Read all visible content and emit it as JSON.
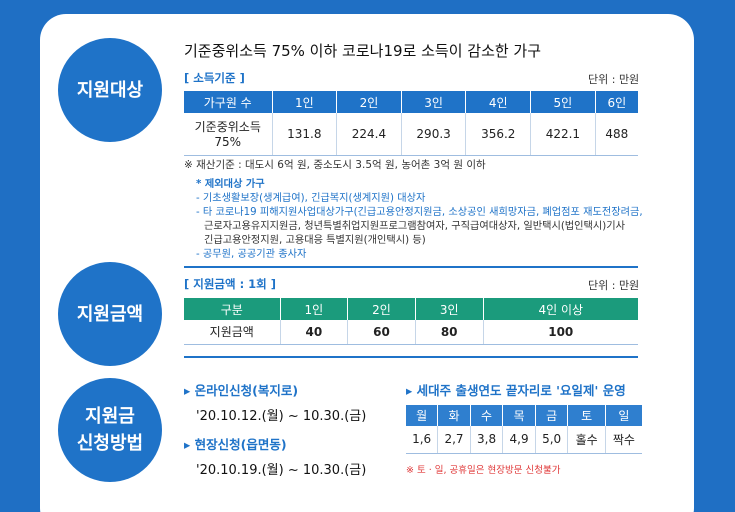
{
  "sections": {
    "target": "지원대상",
    "amount": "지원금액",
    "apply_line1": "지원금",
    "apply_line2": "신청방법"
  },
  "target": {
    "headline": "기준중위소득 75% 이하 코로나19로 소득이 감소한 가구",
    "tag": "[ 소득기준 ]",
    "unit": "단위 : 만원",
    "table": {
      "headers": [
        "가구원 수",
        "1인",
        "2인",
        "3인",
        "4인",
        "5인",
        "6인"
      ],
      "row_label_1": "기준중위소득",
      "row_label_2": "75%",
      "values": [
        "131.8",
        "224.4",
        "290.3",
        "356.2",
        "422.1",
        "488"
      ]
    },
    "asset_note": "※ 재산기준 : 대도시 6억 원, 중소도시 3.5억 원, 농어촌 3억 원 이하",
    "exclusion": {
      "title": "* 제외대상 가구",
      "line1": "- 기초생활보장(생계급여), 긴급복지(생계지원) 대상자",
      "line2": "- 타 코로나19 피해지원사업대상가구(긴급고용안정지원금, 소상공인 새희망자금, 폐업점포 재도전장려금,",
      "line3": "근로자고용유지지원금, 청년특별취업지원프로그램참여자, 구직급여대상자, 일반택시(법인택시)기사",
      "line4": "긴급고용안정지원, 고용대응 특별지원(개인택시) 등)",
      "line5": "- 공무원, 공공기관 종사자"
    }
  },
  "amount": {
    "tag": "[ 지원금액 : 1회 ]",
    "unit": "단위 : 만원",
    "table": {
      "headers": [
        "구분",
        "1인",
        "2인",
        "3인",
        "4인 이상"
      ],
      "row_label": "지원금액",
      "values": [
        "40",
        "60",
        "80",
        "100"
      ]
    }
  },
  "apply": {
    "online_title": "▸ 온라인신청(복지로)",
    "online_date": "'20.10.12.(월) ~ 10.30.(금)",
    "onsite_title": "▸ 현장신청(읍면동)",
    "onsite_date": "'20.10.19.(월) ~ 10.30.(금)",
    "schedule_title": "▸ 세대주 출생연도 끝자리로 '요일제' 운영",
    "days": [
      "월",
      "화",
      "수",
      "목",
      "금",
      "토",
      "일"
    ],
    "digits": [
      "1,6",
      "2,7",
      "3,8",
      "4,9",
      "5,0",
      "홀수",
      "짝수"
    ],
    "weekend_note": "※ 토 · 일, 공휴일은 현장방문 신청불가"
  }
}
